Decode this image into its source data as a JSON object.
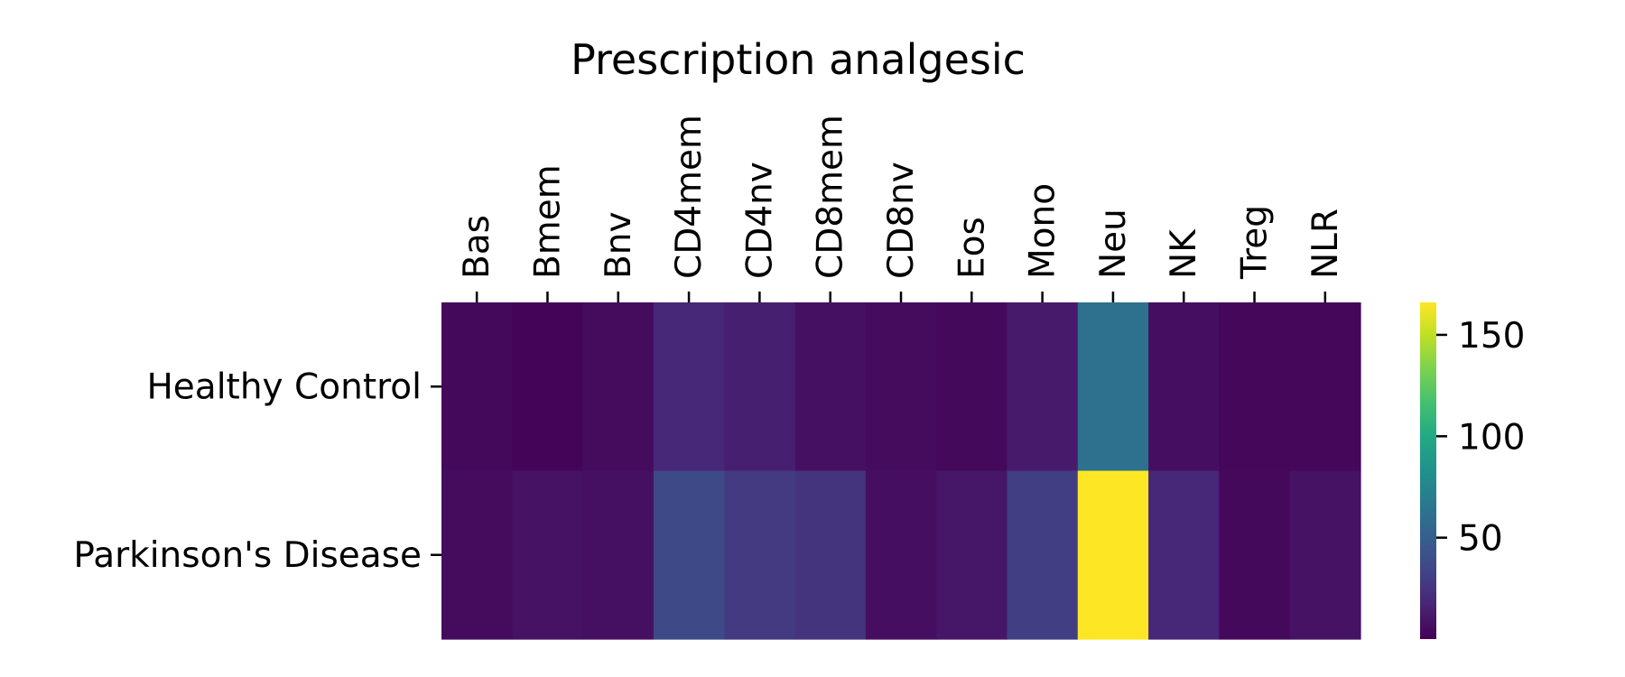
{
  "chart_data": {
    "type": "heatmap",
    "title": "Prescription analgesic",
    "xlabel": "",
    "ylabel": "",
    "columns": [
      "Bas",
      "Bmem",
      "Bnv",
      "CD4mem",
      "CD4nv",
      "CD8mem",
      "CD8nv",
      "Eos",
      "Mono",
      "Neu",
      "NK",
      "Treg",
      "NLR"
    ],
    "rows": [
      "Healthy Control",
      "Parkinson's Disease"
    ],
    "values": [
      [
        4,
        2,
        5,
        18,
        14,
        7,
        5,
        4,
        12,
        62,
        6,
        3,
        3
      ],
      [
        5,
        8,
        7,
        37,
        28,
        25,
        6,
        10,
        30,
        166,
        18,
        4,
        8
      ]
    ],
    "colormap": "viridis",
    "vmin": 0,
    "vmax": 166,
    "colorbar": {
      "ticks": [
        50,
        100,
        150
      ]
    }
  }
}
